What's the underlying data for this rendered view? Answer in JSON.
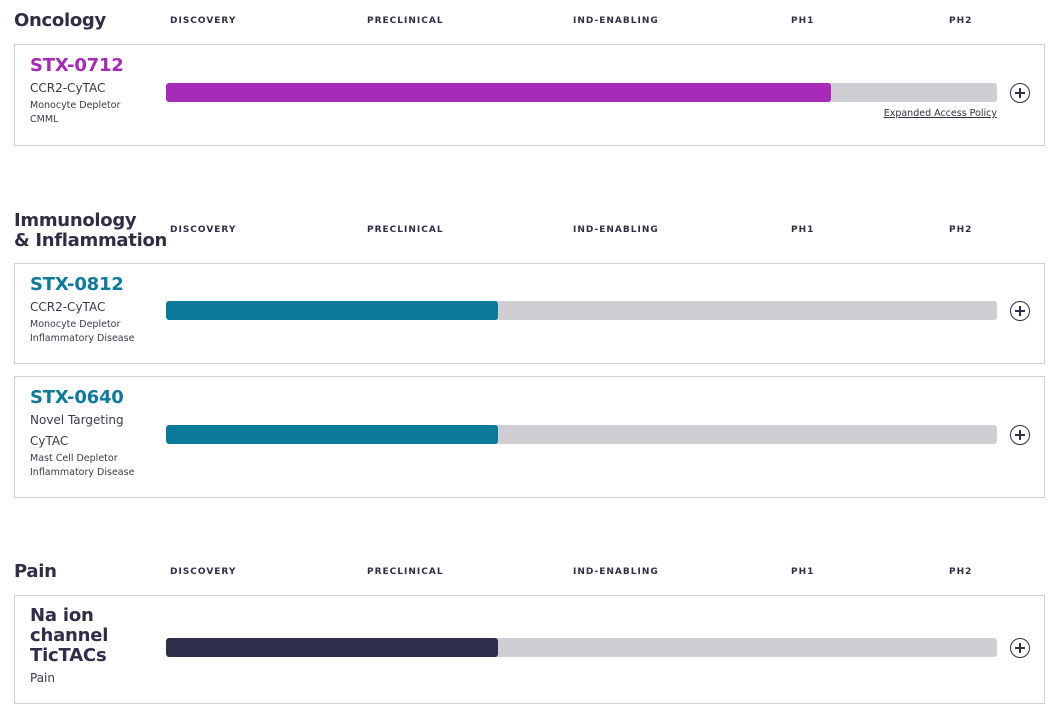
{
  "stages": [
    "DISCOVERY",
    "PRECLINICAL",
    "IND-ENABLING",
    "PH1",
    "PH2"
  ],
  "colors": {
    "oncology": "#a629b8",
    "immunology": "#0b7a9b",
    "pain": "#2f2e4a",
    "track": "#cfcfd3"
  },
  "sections": [
    {
      "title": "Oncology",
      "programs": [
        {
          "code": "STX-0712",
          "target": "CCR2-CyTAC",
          "mechanism": "Monocyte Depletor",
          "indication": "CMML",
          "progress_percent": 80,
          "link": "Expanded Access Policy",
          "expand_icon": "plus-circle-icon"
        }
      ]
    },
    {
      "title_line1": "Immunology",
      "title_line2": "& Inflammation",
      "programs": [
        {
          "code": "STX-0812",
          "target": "CCR2-CyTAC",
          "mechanism": "Monocyte Depletor",
          "indication": "Inflammatory Disease",
          "progress_percent": 40,
          "expand_icon": "plus-circle-icon"
        },
        {
          "code": "STX-0640",
          "target_line1": "Novel Targeting",
          "target_line2": "CyTAC",
          "mechanism": "Mast Cell Depletor",
          "indication": "Inflammatory Disease",
          "progress_percent": 40,
          "expand_icon": "plus-circle-icon"
        }
      ]
    },
    {
      "title": "Pain",
      "programs": [
        {
          "code_line1": "Na ion",
          "code_line2": "channel",
          "code_line3": "TicTACs",
          "indication": "Pain",
          "progress_percent": 40,
          "expand_icon": "plus-circle-icon"
        }
      ]
    }
  ]
}
